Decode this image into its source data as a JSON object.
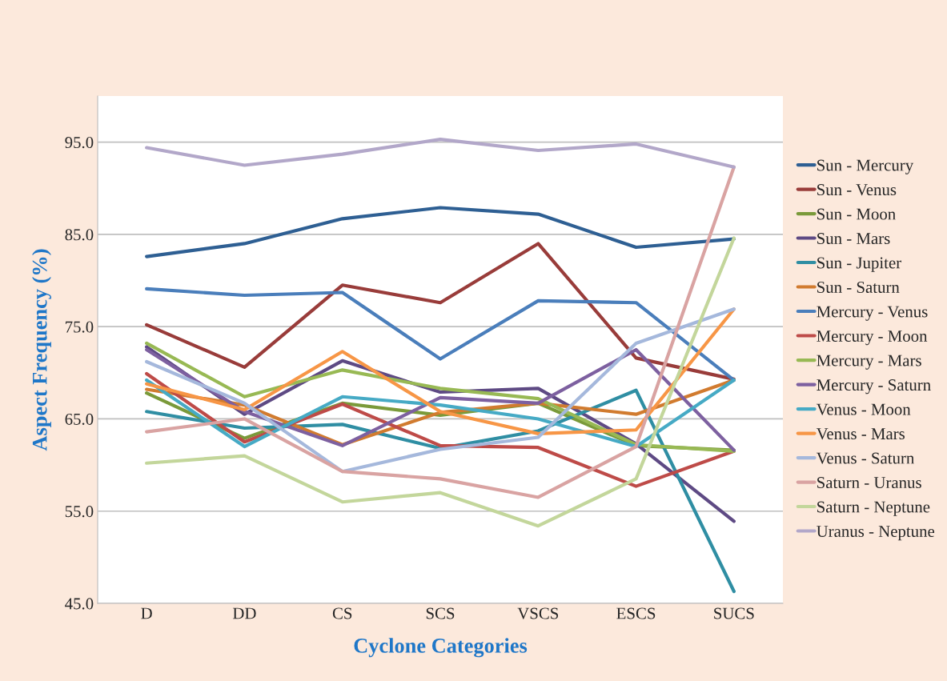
{
  "chart_data": {
    "type": "line",
    "xlabel": "Cyclone Categories",
    "ylabel": "Aspect Frequency (%)",
    "categories": [
      "D",
      "DD",
      "CS",
      "SCS",
      "VSCS",
      "ESCS",
      "SUCS"
    ],
    "ylim": [
      45,
      100
    ],
    "yticks": [
      {
        "value": 45,
        "label": "45.0"
      },
      {
        "value": 55,
        "label": "55.0"
      },
      {
        "value": 65,
        "label": "65.0"
      },
      {
        "value": 75,
        "label": "75.0"
      },
      {
        "value": 85,
        "label": "85.0"
      },
      {
        "value": 95,
        "label": "95.0"
      }
    ],
    "grid": "y",
    "legend": "right",
    "marker": "none",
    "series": [
      {
        "name": "Sun - Mercury",
        "color": "#2e5f93",
        "values": [
          82.6,
          84.0,
          86.7,
          87.9,
          87.2,
          83.6,
          84.5
        ]
      },
      {
        "name": "Sun - Venus",
        "color": "#993c3a",
        "values": [
          75.2,
          70.6,
          79.5,
          77.6,
          84.0,
          71.6,
          69.3
        ]
      },
      {
        "name": "Sun - Moon",
        "color": "#7a9a3a",
        "values": [
          67.8,
          62.9,
          66.7,
          65.4,
          66.7,
          62.1,
          61.6
        ]
      },
      {
        "name": "Sun - Mars",
        "color": "#5e4a84",
        "values": [
          72.8,
          65.5,
          71.3,
          67.9,
          68.3,
          62.3,
          53.9
        ]
      },
      {
        "name": "Sun - Jupiter",
        "color": "#2f8ea3",
        "values": [
          65.8,
          64.0,
          64.4,
          61.8,
          63.7,
          68.1,
          46.3
        ]
      },
      {
        "name": "Sun - Saturn",
        "color": "#d17b2f",
        "values": [
          68.2,
          66.5,
          62.2,
          65.7,
          66.7,
          65.5,
          69.2
        ]
      },
      {
        "name": "Mercury - Venus",
        "color": "#4a7ebb",
        "values": [
          79.1,
          78.4,
          78.7,
          71.5,
          77.8,
          77.6,
          69.2
        ]
      },
      {
        "name": "Mercury - Moon",
        "color": "#be4b48",
        "values": [
          69.9,
          62.5,
          66.6,
          62.1,
          61.9,
          57.7,
          61.5
        ]
      },
      {
        "name": "Mercury - Mars",
        "color": "#98b954",
        "values": [
          73.2,
          67.4,
          70.3,
          68.3,
          67.2,
          62.2,
          61.5
        ]
      },
      {
        "name": "Mercury - Saturn",
        "color": "#7d60a0",
        "values": [
          72.5,
          65.8,
          62.1,
          67.3,
          66.7,
          72.5,
          61.6
        ]
      },
      {
        "name": "Venus - Moon",
        "color": "#46aac5",
        "values": [
          69.2,
          62.0,
          67.4,
          66.5,
          65.0,
          62.0,
          69.2
        ]
      },
      {
        "name": "Venus - Mars",
        "color": "#f79646",
        "values": [
          68.8,
          66.0,
          72.3,
          65.8,
          63.4,
          63.8,
          76.9
        ]
      },
      {
        "name": "Venus - Saturn",
        "color": "#a5b8dc",
        "values": [
          71.2,
          66.7,
          59.3,
          61.7,
          63.0,
          73.2,
          76.9
        ]
      },
      {
        "name": "Saturn - Uranus",
        "color": "#d9a3a2",
        "values": [
          63.6,
          65.0,
          59.3,
          58.5,
          56.5,
          62.0,
          92.3
        ]
      },
      {
        "name": "Saturn - Neptune",
        "color": "#c3d69b",
        "values": [
          60.2,
          61.0,
          56.0,
          57.0,
          53.4,
          58.5,
          84.6
        ]
      },
      {
        "name": "Uranus - Neptune",
        "color": "#b2a7c9",
        "values": [
          94.4,
          92.5,
          93.7,
          95.3,
          94.1,
          94.8,
          92.3
        ]
      }
    ]
  }
}
